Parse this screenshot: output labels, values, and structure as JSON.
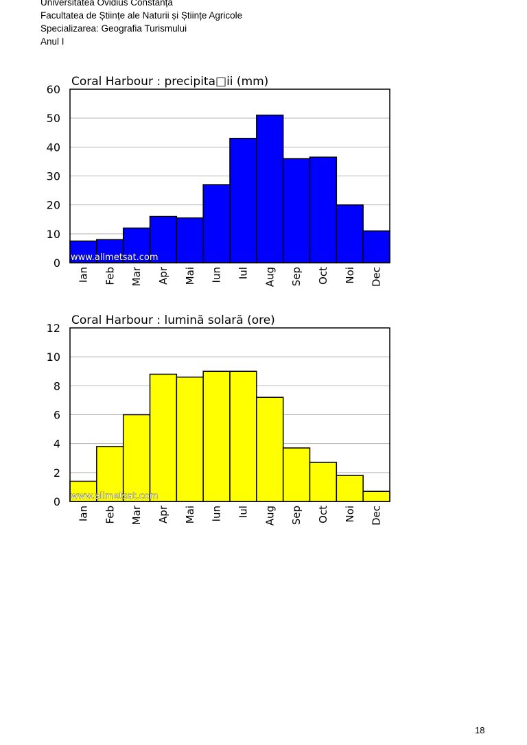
{
  "header": {
    "lines": [
      "Universitatea Ovidius Constanța",
      "Facultatea de Științe ale Naturii și Științe Agricole",
      "Specializarea: Geografia Turismului",
      "Anul I"
    ]
  },
  "page_number": "18",
  "chart_data": [
    {
      "type": "bar",
      "title": "Coral Harbour : precipita□ii (mm)",
      "watermark": "www.allmetsat.com",
      "categories": [
        "Ian",
        "Feb",
        "Mar",
        "Apr",
        "Mai",
        "Iun",
        "Iul",
        "Aug",
        "Sep",
        "Oct",
        "Noi",
        "Dec"
      ],
      "values": [
        7.5,
        8,
        12,
        16,
        15.5,
        27,
        43,
        51,
        36,
        36.5,
        20,
        11
      ],
      "ylim": [
        0,
        60
      ],
      "yticks": [
        0,
        10,
        20,
        30,
        40,
        50,
        60
      ],
      "ytick_labels": [
        "0",
        "10",
        "20",
        "30",
        "40",
        "50",
        "60"
      ],
      "grid": true,
      "bar_color": "#0000ff",
      "xlabel": "",
      "ylabel": ""
    },
    {
      "type": "bar",
      "title": "Coral Harbour : lumină solară (ore)",
      "watermark": "www.allmetsat.com",
      "categories": [
        "Ian",
        "Feb",
        "Mar",
        "Apr",
        "Mai",
        "Iun",
        "Iul",
        "Aug",
        "Sep",
        "Oct",
        "Noi",
        "Dec"
      ],
      "values": [
        1.4,
        3.8,
        6,
        8.8,
        8.6,
        9,
        9,
        7.2,
        3.7,
        2.7,
        1.8,
        0.7
      ],
      "ylim": [
        0,
        12
      ],
      "yticks": [
        0,
        2,
        4,
        6,
        8,
        10,
        12
      ],
      "ytick_labels": [
        "0",
        "2",
        "4",
        "6",
        "8",
        "10",
        "12"
      ],
      "grid": true,
      "bar_color": "#ffff00",
      "xlabel": "",
      "ylabel": ""
    }
  ]
}
